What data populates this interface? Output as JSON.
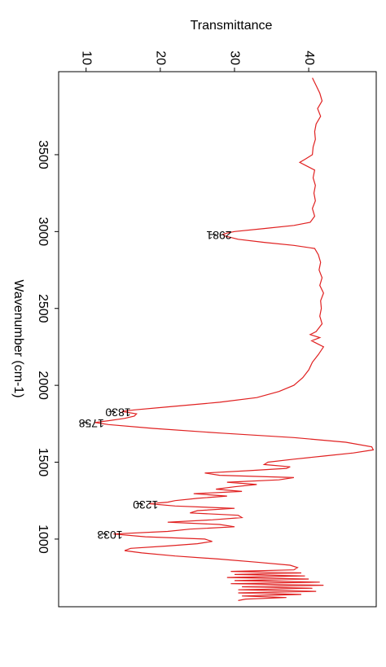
{
  "chart_data": {
    "type": "line",
    "title": "Transmittance",
    "xlabel": "Wavenumber (cm-1)",
    "color": "#e02020",
    "xlim": [
      4040,
      560
    ],
    "xticks": [
      3500,
      3000,
      2500,
      2000,
      1500,
      1000
    ],
    "ylim": [
      6.3,
      49.1
    ],
    "yticks": [
      10,
      20,
      30,
      40
    ],
    "x": [
      4000,
      3950,
      3900,
      3850,
      3800,
      3750,
      3700,
      3650,
      3600,
      3550,
      3500,
      3470,
      3450,
      3430,
      3400,
      3350,
      3300,
      3250,
      3200,
      3150,
      3100,
      3060,
      3040,
      3020,
      3000,
      2990,
      2981,
      2970,
      2950,
      2930,
      2910,
      2890,
      2850,
      2800,
      2750,
      2700,
      2650,
      2600,
      2550,
      2500,
      2450,
      2400,
      2350,
      2330,
      2310,
      2290,
      2270,
      2250,
      2200,
      2150,
      2100,
      2050,
      2000,
      1960,
      1920,
      1890,
      1860,
      1840,
      1830,
      1815,
      1800,
      1785,
      1770,
      1758,
      1745,
      1720,
      1690,
      1660,
      1630,
      1600,
      1580,
      1560,
      1540,
      1520,
      1500,
      1485,
      1470,
      1460,
      1445,
      1430,
      1415,
      1400,
      1385,
      1370,
      1355,
      1340,
      1325,
      1310,
      1295,
      1280,
      1265,
      1250,
      1240,
      1230,
      1215,
      1200,
      1185,
      1170,
      1155,
      1140,
      1125,
      1110,
      1095,
      1080,
      1065,
      1050,
      1033,
      1015,
      1000,
      985,
      970,
      955,
      940,
      925,
      910,
      890,
      870,
      850,
      830,
      815,
      800,
      790,
      780,
      770,
      760,
      750,
      740,
      730,
      720,
      710,
      700,
      690,
      680,
      670,
      660,
      650,
      640,
      630,
      620,
      610,
      600
    ],
    "values": [
      40.5,
      41,
      41.5,
      41.8,
      41.2,
      41.6,
      41,
      40.8,
      40.9,
      40.6,
      40.5,
      39.5,
      38.8,
      39.6,
      40.8,
      40.6,
      40.9,
      40.7,
      40.9,
      40.5,
      40.8,
      40.2,
      38,
      34,
      30,
      29,
      28.4,
      28.8,
      30.5,
      34,
      38,
      40.8,
      41.3,
      41.6,
      41.4,
      41.8,
      41.5,
      42,
      41.6,
      41.7,
      41.5,
      41.8,
      41,
      40.2,
      41.5,
      40.4,
      41.2,
      42,
      41.3,
      40.5,
      40,
      39.2,
      38,
      36,
      33,
      28,
      21,
      16.5,
      14.8,
      16.8,
      16.5,
      15.2,
      13,
      11.2,
      13,
      19,
      28,
      38,
      45,
      48.5,
      48.7,
      46,
      42,
      38,
      34.5,
      34,
      37.5,
      37,
      32,
      26,
      28,
      38,
      36,
      29,
      33,
      30,
      27.5,
      31,
      24.5,
      29,
      25,
      22,
      21,
      18.5,
      22,
      30,
      25,
      24,
      30.5,
      31,
      27,
      21,
      28,
      30,
      24,
      21,
      13.7,
      18,
      26,
      27,
      25,
      21,
      16,
      15.2,
      17.5,
      22,
      28,
      33,
      37.5,
      38.5,
      38,
      29.5,
      39,
      30,
      39.5,
      29,
      40,
      30,
      41.5,
      29.5,
      42,
      31,
      40.5,
      30.5,
      41,
      30.5,
      39,
      31,
      37,
      31.5,
      30.5
    ],
    "annotations": [
      {
        "text": "2981",
        "x": 2981,
        "y": 28.4
      },
      {
        "text": "1830",
        "x": 1830,
        "y": 14.8
      },
      {
        "text": "1758",
        "x": 1758,
        "y": 11.2
      },
      {
        "text": "1230",
        "x": 1230,
        "y": 18.5
      },
      {
        "text": "1033",
        "x": 1033,
        "y": 13.7
      }
    ]
  }
}
